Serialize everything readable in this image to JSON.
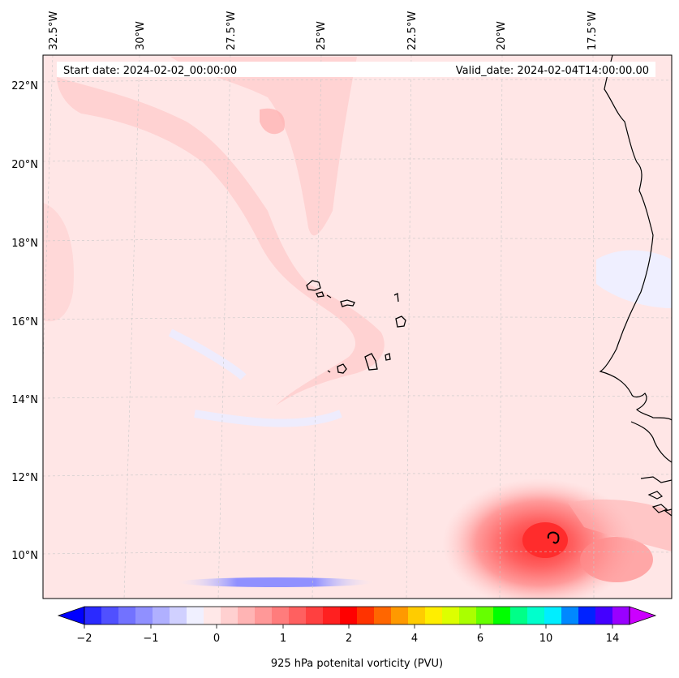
{
  "header": {
    "start_date": "Start date: 2024-02-02_00:00:00",
    "valid_date": "Valid_date: 2024-02-04T14:00:00.00"
  },
  "map": {
    "lon_labels": [
      "32.5°W",
      "30°W",
      "27.5°W",
      "25°W",
      "22.5°W",
      "20°W",
      "17.5°W"
    ],
    "lat_labels": [
      "22°N",
      "20°N",
      "18°N",
      "16°N",
      "14°N",
      "12°N",
      "10°N"
    ],
    "extent_lon": [
      -32.7,
      -15.3
    ],
    "extent_lat": [
      8.9,
      22.8
    ],
    "background_color": "#ffe6e6",
    "features": [
      "west-african-coastline",
      "cape-verde-islands",
      "bijagos-islands"
    ]
  },
  "colorbar": {
    "ticks": [
      "−2",
      "−1",
      "0",
      "1",
      "2",
      "4",
      "6",
      "10",
      "14"
    ],
    "label": "925 hPa potenital vorticity (PVU)",
    "colors": [
      "#0000ff",
      "#2a2aff",
      "#5050ff",
      "#7272ff",
      "#9090ff",
      "#b0b0ff",
      "#d0d0ff",
      "#f0f0ff",
      "#ffe8e8",
      "#ffd0d0",
      "#ffb4b4",
      "#ff9898",
      "#ff7c7c",
      "#ff6060",
      "#ff4040",
      "#ff2020",
      "#ff0000",
      "#ff3300",
      "#ff6600",
      "#ff9900",
      "#ffcc00",
      "#ffee00",
      "#ddff00",
      "#aaff00",
      "#66ff00",
      "#00ff00",
      "#00ff88",
      "#00ffcc",
      "#00eeff",
      "#0088ff",
      "#0022ff",
      "#4400ff",
      "#9900ff",
      "#cc00ff"
    ]
  }
}
